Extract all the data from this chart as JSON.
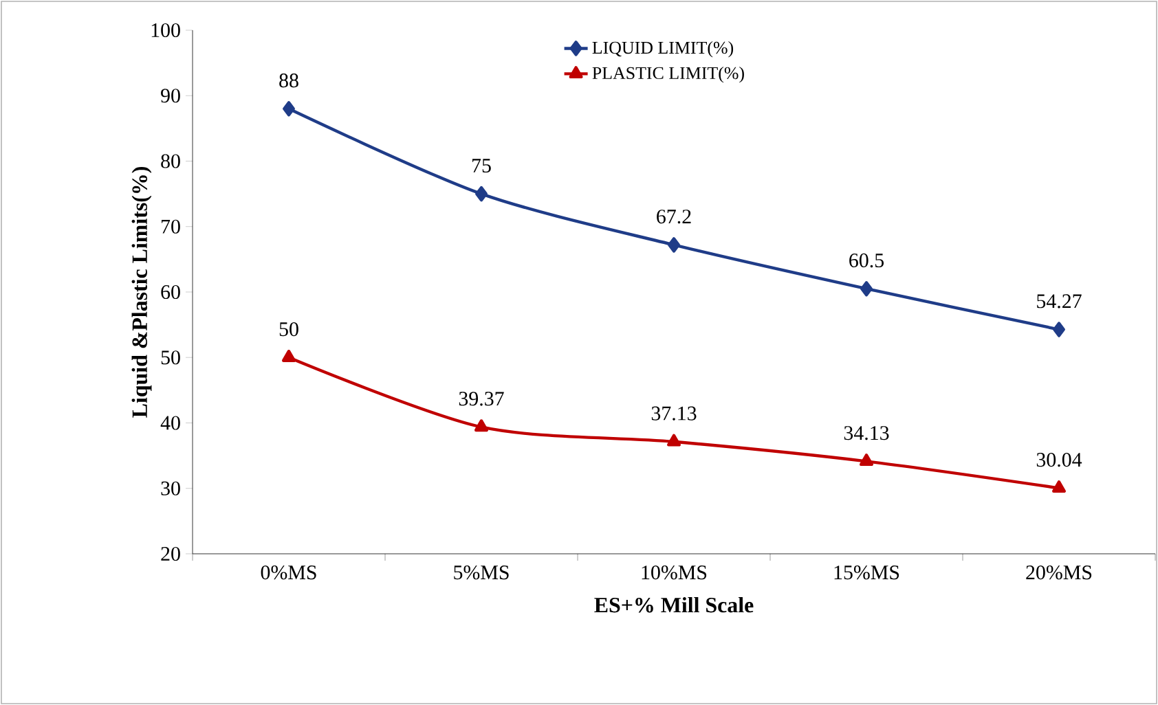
{
  "chart_data": {
    "type": "line",
    "xlabel": "ES+% Mill Scale",
    "ylabel": "Liquid &Plastic Limits(%)",
    "categories": [
      "0%MS",
      "5%MS",
      "10%MS",
      "15%MS",
      "20%MS"
    ],
    "series": [
      {
        "name": "LIQUID LIMIT(%)",
        "color": "#1f3c88",
        "marker": "diamond",
        "values": [
          88,
          75,
          67.2,
          60.5,
          54.27
        ]
      },
      {
        "name": "PLASTIC LIMIT(%)",
        "color": "#c00000",
        "marker": "triangle",
        "values": [
          50,
          39.37,
          37.13,
          34.13,
          30.04
        ]
      }
    ],
    "ylim": [
      20,
      100
    ],
    "yticks": [
      20,
      30,
      40,
      50,
      60,
      70,
      80,
      90,
      100
    ],
    "grid": false,
    "legend": "top right",
    "data_labels": true,
    "line_style": "solid"
  }
}
